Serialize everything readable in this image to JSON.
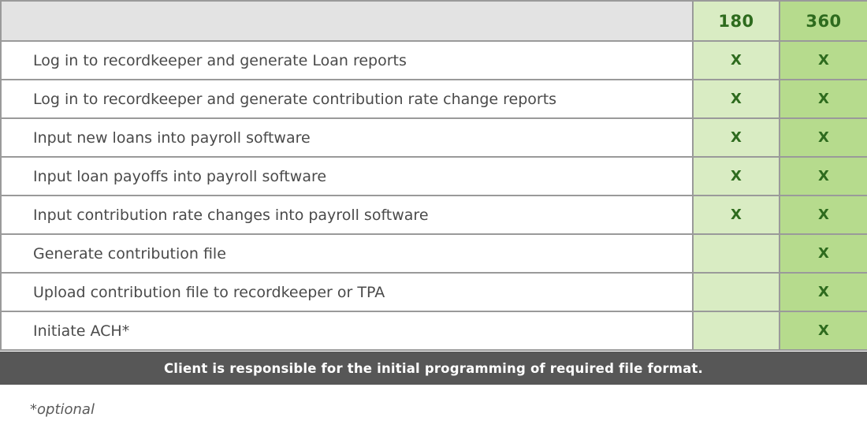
{
  "table": {
    "header": {
      "task_label": "",
      "col_180": "180",
      "col_360": "360"
    },
    "rows": [
      {
        "task": "Log in to recordkeeper and generate Loan reports",
        "c180": "X",
        "c360": "X"
      },
      {
        "task": "Log in to recordkeeper and generate contribution rate change reports",
        "c180": "X",
        "c360": "X"
      },
      {
        "task": "Input new loans into payroll software",
        "c180": "X",
        "c360": "X"
      },
      {
        "task": "Input loan payoffs into payroll software",
        "c180": "X",
        "c360": "X"
      },
      {
        "task": "Input contribution rate changes into payroll software",
        "c180": "X",
        "c360": "X"
      },
      {
        "task": "Generate contribution file",
        "c180": "",
        "c360": "X"
      },
      {
        "task": "Upload contribution file to recordkeeper or TPA",
        "c180": "",
        "c360": "X"
      },
      {
        "task": "Initiate ACH*",
        "c180": "",
        "c360": "X"
      }
    ]
  },
  "footer_bar": "Client is responsible for the initial programming of required file format.",
  "note": "*optional",
  "colors": {
    "header_gray": "#e3e3e3",
    "col_180_green": "#d9ecc3",
    "col_360_green": "#b6db8d",
    "mark_green": "#2e6b1e",
    "footer_gray": "#575757"
  }
}
